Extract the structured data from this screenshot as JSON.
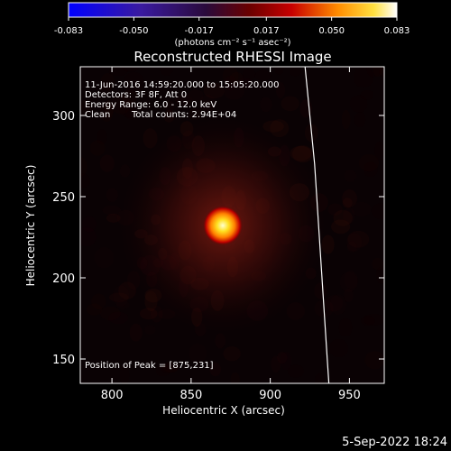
{
  "chart_data": {
    "type": "heatmap",
    "title": "Reconstructed RHESSI Image",
    "xlabel": "Heliocentric X (arcsec)",
    "ylabel": "Heliocentric Y (arcsec)",
    "xlim": [
      780,
      972
    ],
    "ylim": [
      135,
      330
    ],
    "x_ticks": [
      800,
      850,
      900,
      950
    ],
    "y_ticks": [
      150,
      200,
      250,
      300
    ],
    "colorbar": {
      "ticks": [
        "-0.083",
        "-0.050",
        "-0.017",
        "0.017",
        "0.050",
        "0.083"
      ],
      "tick_values": [
        -0.083,
        -0.05,
        -0.017,
        0.017,
        0.05,
        0.083
      ],
      "range": [
        -0.083,
        0.083
      ],
      "units_line": "(photons cm⁻² s⁻¹ asec⁻²)"
    },
    "annotations": {
      "time_range": "11-Jun-2016 14:59:20.000 to 15:05:20.000",
      "detectors": "Detectors: 3F 8F, Att 0",
      "energy": "Energy Range: 6.0 - 12.0 keV",
      "algorithm": "Clean",
      "counts": "Total counts: 2.94E+04",
      "peak": "Position of Peak = [875,231]"
    },
    "peak": {
      "x": 875,
      "y": 231
    },
    "limb": [
      [
        922,
        330
      ],
      [
        925,
        300
      ],
      [
        928,
        270
      ],
      [
        930,
        240
      ],
      [
        932,
        210
      ],
      [
        934,
        180
      ],
      [
        936,
        150
      ],
      [
        937,
        135
      ]
    ],
    "footer": "5-Sep-2022 18:24"
  }
}
